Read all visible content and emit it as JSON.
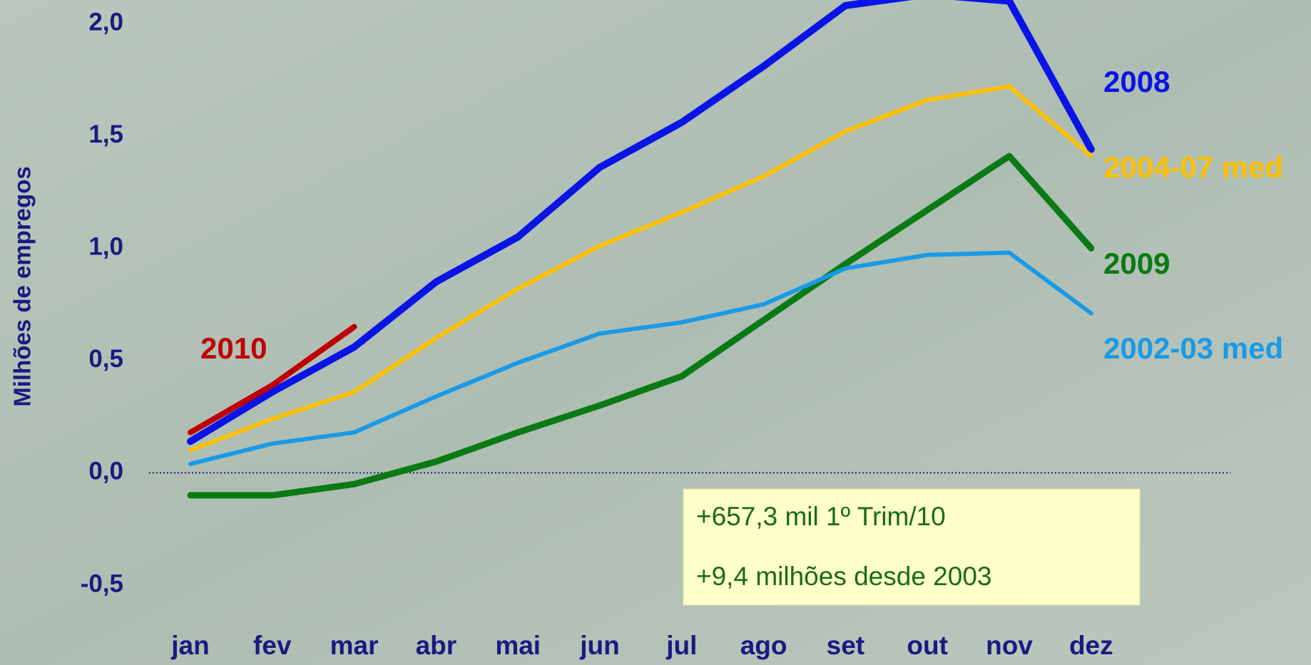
{
  "chart_data": {
    "type": "line",
    "ylabel": "Milhões de empregos",
    "categories": [
      "jan",
      "fev",
      "mar",
      "abr",
      "mai",
      "jun",
      "jul",
      "ago",
      "set",
      "out",
      "nov",
      "dez"
    ],
    "series": [
      {
        "name": "2008",
        "color": "#0a14e6",
        "values": [
          0.14,
          0.36,
          0.56,
          0.85,
          1.05,
          1.36,
          1.56,
          1.81,
          2.08,
          2.13,
          2.1,
          1.44
        ]
      },
      {
        "name": "2004-07 med",
        "color": "#ffc000",
        "values": [
          0.1,
          0.24,
          0.36,
          0.6,
          0.82,
          1.01,
          1.16,
          1.32,
          1.52,
          1.66,
          1.72,
          1.41
        ]
      },
      {
        "name": "2009",
        "color": "#0a7a14",
        "values": [
          -0.1,
          -0.1,
          -0.05,
          0.05,
          0.18,
          0.3,
          0.43,
          0.68,
          0.93,
          1.17,
          1.41,
          1.0
        ]
      },
      {
        "name": "2002-03 med",
        "color": "#1a9ae6",
        "values": [
          0.04,
          0.13,
          0.18,
          0.34,
          0.49,
          0.62,
          0.67,
          0.75,
          0.91,
          0.97,
          0.98,
          0.71
        ]
      },
      {
        "name": "2010",
        "color": "#c00000",
        "values": [
          0.18,
          0.39,
          0.65,
          null,
          null,
          null,
          null,
          null,
          null,
          null,
          null,
          null
        ]
      }
    ],
    "ylim": [
      -0.5,
      2.0
    ],
    "yticks": [
      {
        "value": -0.5,
        "label": "-0,5"
      },
      {
        "value": 0,
        "label": "0,0"
      },
      {
        "value": 0.5,
        "label": "0,5"
      },
      {
        "value": 1.0,
        "label": "1,0"
      },
      {
        "value": 1.5,
        "label": "1,5"
      },
      {
        "value": 2.0,
        "label": "2,0"
      }
    ],
    "annotations": [
      "+657,3 mil 1º Trim/10",
      "+9,4 milhões desde 2003"
    ]
  }
}
